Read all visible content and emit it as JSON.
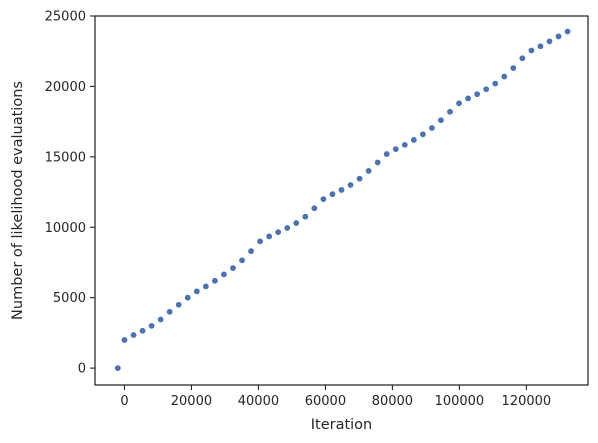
{
  "chart_data": {
    "type": "scatter",
    "xlabel": "Iteration",
    "ylabel": "Number of likelihood evaluations",
    "xlim": [
      -8800,
      138400
    ],
    "ylim": [
      -1200,
      25000
    ],
    "grid": false,
    "xticks": [
      0,
      20000,
      40000,
      60000,
      80000,
      100000,
      120000
    ],
    "xtick_labels": [
      "0",
      "20000",
      "40000",
      "60000",
      "80000",
      "100000",
      "120000"
    ],
    "yticks": [
      0,
      5000,
      10000,
      15000,
      20000,
      25000
    ],
    "ytick_labels": [
      "0",
      "5000",
      "10000",
      "15000",
      "20000",
      "25000"
    ],
    "marker_color": "#4c72b0",
    "series": [
      {
        "x": [
          -2000,
          0,
          2700,
          5400,
          8100,
          10800,
          13500,
          16200,
          18900,
          21600,
          24300,
          27000,
          29700,
          32400,
          35100,
          37800,
          40500,
          43200,
          45900,
          48600,
          51300,
          54000,
          56700,
          59400,
          62100,
          64800,
          67500,
          70200,
          72900,
          75600,
          78300,
          81000,
          83700,
          86400,
          89100,
          91800,
          94500,
          97200,
          99900,
          102600,
          105300,
          108000,
          110700,
          113400,
          116100,
          118800,
          121500,
          124200,
          126900,
          129600,
          132300
        ],
        "y": [
          0,
          2000,
          2350,
          2650,
          3000,
          3450,
          4000,
          4500,
          5000,
          5450,
          5800,
          6200,
          6650,
          7100,
          7650,
          8300,
          9000,
          9350,
          9650,
          9950,
          10300,
          10750,
          11350,
          12000,
          12350,
          12650,
          13000,
          13450,
          14000,
          14600,
          15200,
          15550,
          15850,
          16200,
          16600,
          17050,
          17600,
          18200,
          18800,
          19150,
          19450,
          19800,
          20200,
          20700,
          21300,
          22000,
          22550,
          22850,
          23200,
          23550,
          23900
        ]
      }
    ]
  }
}
